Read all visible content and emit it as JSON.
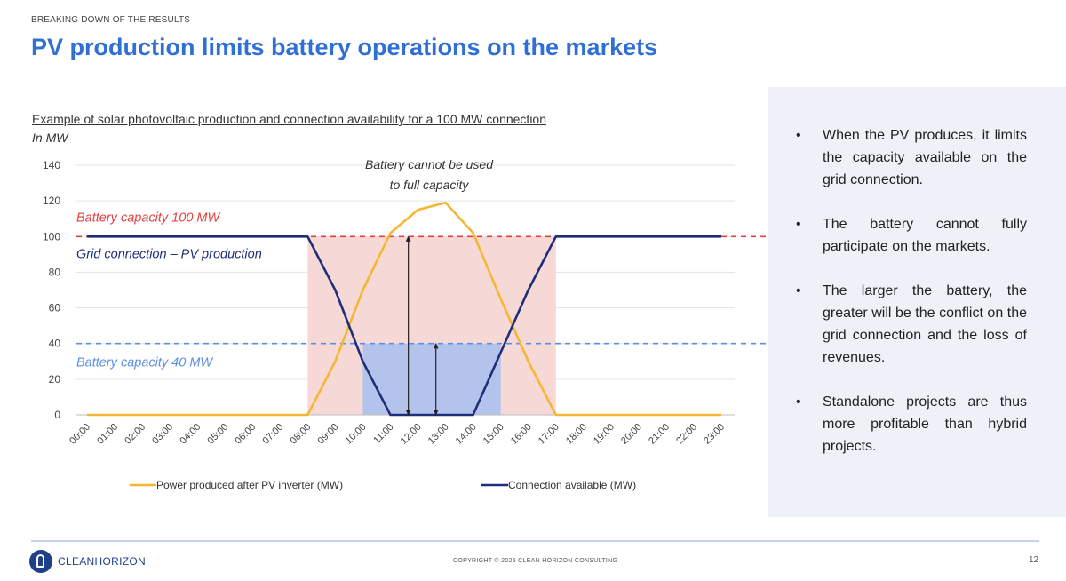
{
  "header": {
    "kicker": "BREAKING DOWN OF THE RESULTS",
    "title": "PV production limits battery operations on the markets"
  },
  "chart_data": {
    "type": "line",
    "title": "Example of solar photovoltaic production and connection availability for a 100 MW connection",
    "ylabel": "In MW",
    "ylim": [
      0,
      140
    ],
    "yticks": [
      0,
      20,
      40,
      60,
      80,
      100,
      120,
      140
    ],
    "categories": [
      "00:00",
      "01:00",
      "02:00",
      "03:00",
      "04:00",
      "05:00",
      "06:00",
      "07:00",
      "08:00",
      "09:00",
      "10:00",
      "11:00",
      "12:00",
      "13:00",
      "14:00",
      "15:00",
      "16:00",
      "17:00",
      "18:00",
      "19:00",
      "20:00",
      "21:00",
      "22:00",
      "23:00"
    ],
    "series": [
      {
        "name": "Power produced after PV inverter (MW)",
        "color": "#f5b731",
        "values": [
          0,
          0,
          0,
          0,
          0,
          0,
          0,
          0,
          0,
          30,
          70,
          102,
          115,
          119,
          102,
          65,
          30,
          0,
          0,
          0,
          0,
          0,
          0,
          0
        ]
      },
      {
        "name": "Connection available (MW)",
        "color": "#1f2e7a",
        "values": [
          100,
          100,
          100,
          100,
          100,
          100,
          100,
          100,
          100,
          70,
          30,
          0,
          0,
          0,
          0,
          35,
          70,
          100,
          100,
          100,
          100,
          100,
          100,
          100
        ]
      }
    ],
    "reference_lines": [
      {
        "label": "Battery capacity 100 MW",
        "value": 100,
        "color": "#e0423f"
      },
      {
        "label": "Battery capacity 40 MW",
        "value": 40,
        "color": "#5b8fe3"
      }
    ],
    "annotations": {
      "grid_label": "Grid connection – PV production",
      "callout": "Battery cannot be used to full capacity"
    },
    "shaded_regions": [
      {
        "from": 8,
        "to": 17,
        "ymin": 0,
        "ymax": 100,
        "color": "#f6d9d6"
      },
      {
        "from": 10,
        "to": 15,
        "ymin": 0,
        "ymax": 40,
        "color": "#b3c3ec"
      }
    ],
    "legend_position": "bottom",
    "grid": true
  },
  "bullets": [
    "When the PV produces, it limits the capacity available on the grid connection.",
    "The battery cannot fully participate on the markets.",
    "The larger the battery, the greater will be the conflict on the grid connection and the loss of revenues.",
    "Standalone projects are thus more profitable than hybrid projects."
  ],
  "footer": {
    "logo_text": "CLEANHORIZON",
    "copyright": "COPYRIGHT © 2025 CLEAN HORIZON CONSULTING",
    "page_number": "12"
  }
}
